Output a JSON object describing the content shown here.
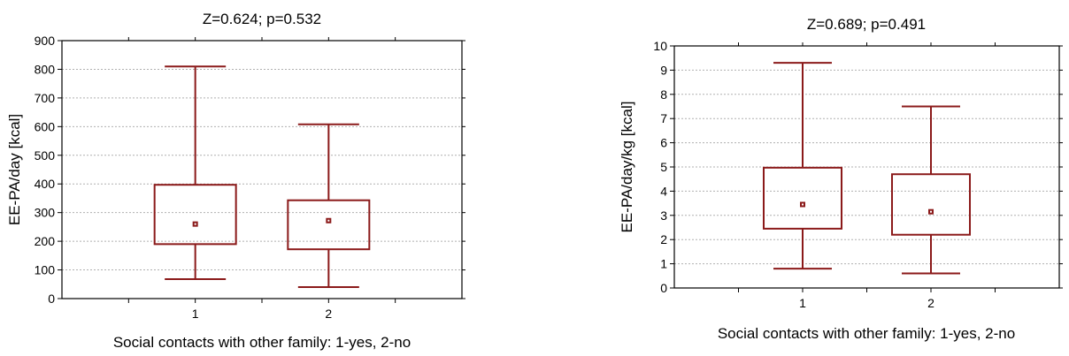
{
  "chart_data": [
    {
      "type": "box",
      "title": "Z=0.624; p=0.532",
      "xlabel": "Social contacts with other family: 1-yes, 2-no",
      "ylabel": "EE-PA/day [kcal]",
      "ylim": [
        0,
        900
      ],
      "yticks": [
        0,
        100,
        200,
        300,
        400,
        500,
        600,
        700,
        800,
        900
      ],
      "xlim": [
        0,
        3
      ],
      "categories": [
        "1",
        "2"
      ],
      "boxes": [
        {
          "category": "1",
          "whisker_low": 68,
          "q1": 190,
          "median": 260,
          "q3": 397,
          "whisker_high": 810
        },
        {
          "category": "2",
          "whisker_low": 40,
          "q1": 172,
          "median": 272,
          "q3": 343,
          "whisker_high": 608
        }
      ],
      "grid": true
    },
    {
      "type": "box",
      "title": "Z=0.689; p=0.491",
      "xlabel": "Social contacts with other family: 1-yes, 2-no",
      "ylabel": "EE-PA/day/kg [kcal]",
      "ylim": [
        0,
        10
      ],
      "yticks": [
        0,
        1,
        2,
        3,
        4,
        5,
        6,
        7,
        8,
        9,
        10
      ],
      "xlim": [
        0,
        3
      ],
      "categories": [
        "1",
        "2"
      ],
      "boxes": [
        {
          "category": "1",
          "whisker_low": 0.8,
          "q1": 2.45,
          "median": 3.45,
          "q3": 4.97,
          "whisker_high": 9.3
        },
        {
          "category": "2",
          "whisker_low": 0.6,
          "q1": 2.2,
          "median": 3.15,
          "q3": 4.7,
          "whisker_high": 7.5
        }
      ],
      "grid": true
    }
  ]
}
